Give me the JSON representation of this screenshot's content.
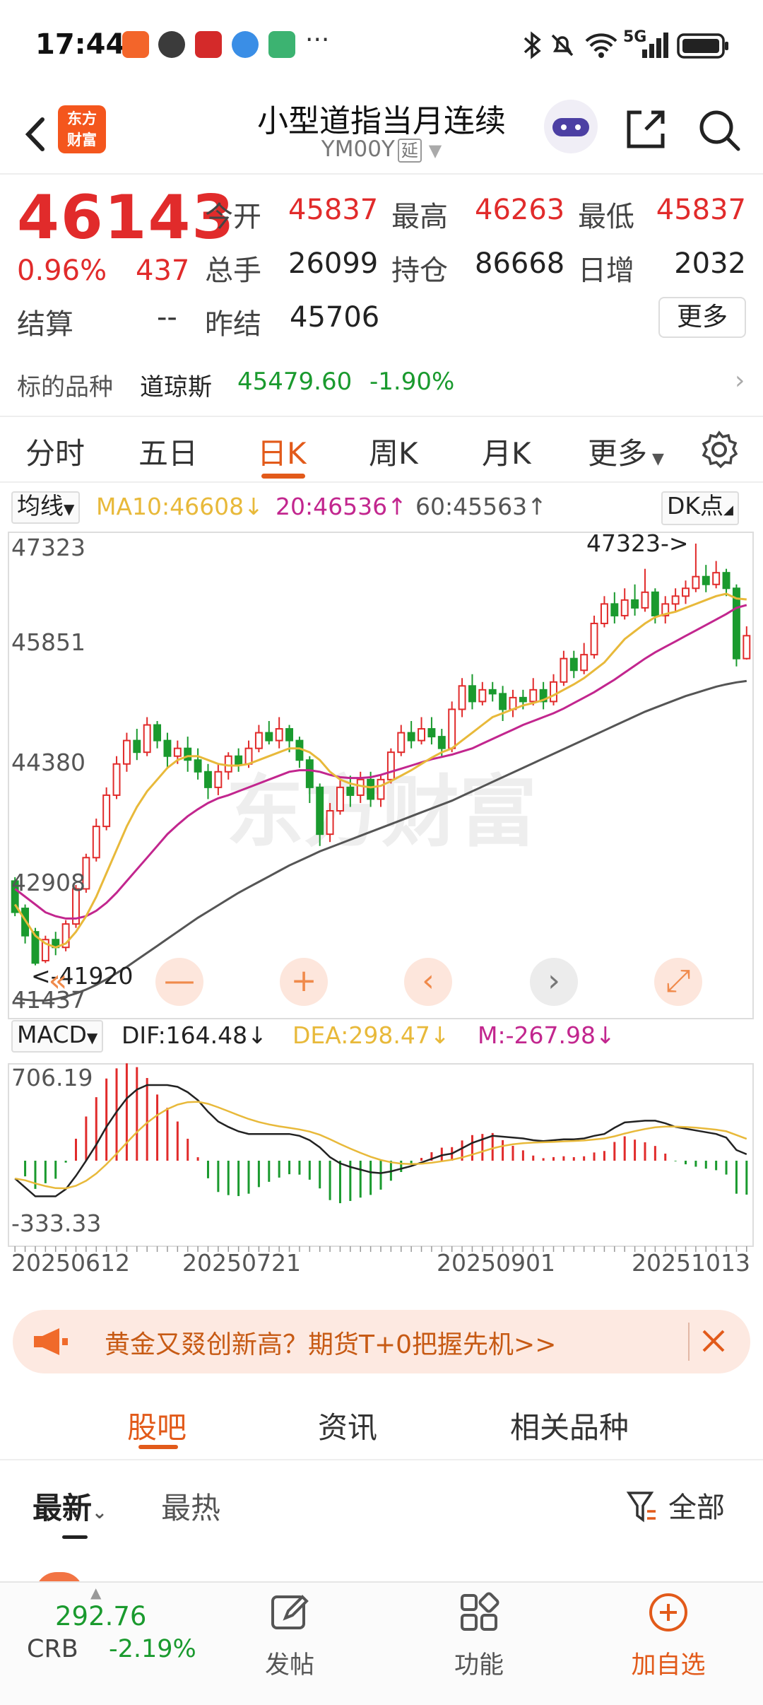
{
  "status_bar": {
    "time": "17:44",
    "network": "5G"
  },
  "header": {
    "logo_text": "东方\n财富",
    "title": "小型道指当月连续",
    "code": "YM00Y",
    "delay_badge": "延"
  },
  "quote": {
    "price": "46143",
    "change_pct": "0.96%",
    "change": "437",
    "rows": [
      [
        {
          "label": "今开",
          "value": "45837",
          "color": "red"
        },
        {
          "label": "最高",
          "value": "46263",
          "color": "red"
        },
        {
          "label": "最低",
          "value": "45837",
          "color": "red"
        }
      ],
      [
        {
          "label": "总手",
          "value": "26099",
          "color": "dark"
        },
        {
          "label": "持仓",
          "value": "86668",
          "color": "dark"
        },
        {
          "label": "日增",
          "value": "2032",
          "color": "dark"
        }
      ]
    ],
    "settle_label": "结算",
    "settle_value": "--",
    "prev_settle_label": "昨结",
    "prev_settle_value": "45706",
    "more_button": "更多"
  },
  "underlying": {
    "label": "标的品种",
    "name": "道琼斯",
    "price": "45479.60",
    "change_pct": "-1.90%"
  },
  "chart_tabs": [
    {
      "label": "分时",
      "active": false
    },
    {
      "label": "五日",
      "active": false
    },
    {
      "label": "日K",
      "active": true
    },
    {
      "label": "周K",
      "active": false
    },
    {
      "label": "月K",
      "active": false
    },
    {
      "label": "更多",
      "active": false
    }
  ],
  "indicators": {
    "ma_select": "均线",
    "ma10": "MA10:46608↓",
    "ma20": "20:46536↑",
    "ma60": "60:45563↑",
    "dk_label": "DK点",
    "macd_select": "MACD",
    "dif": "DIF:164.48↓",
    "dea": "DEA:298.47↓",
    "m": "M:-267.98↓",
    "colors": {
      "ma10": "#e8b93a",
      "ma20": "#c2268e",
      "ma60": "#555555",
      "up": "#e12b2b",
      "down": "#1a9a2e"
    }
  },
  "kline_axis": {
    "y_labels": [
      "47323",
      "45851",
      "44380",
      "42908",
      "41437"
    ],
    "high_marker": "47323->",
    "low_marker": "<-41920"
  },
  "macd_axis": {
    "y_labels": [
      "706.19",
      "-333.33"
    ],
    "dates": [
      "20250612",
      "20250721",
      "20250901",
      "20251013"
    ]
  },
  "chart_controls": [
    "«",
    "—",
    "+",
    "‹",
    "›",
    "⤢"
  ],
  "banner": {
    "text": "黄金又叕创新高？期货T+0把握先机>>"
  },
  "content_tabs": [
    {
      "label": "股吧",
      "active": true
    },
    {
      "label": "资讯",
      "active": false
    },
    {
      "label": "相关品种",
      "active": false
    }
  ],
  "sort": {
    "latest": "最新",
    "hot": "最热",
    "filter": "全部"
  },
  "bottom_bar": {
    "crb_value": "292.76",
    "crb_label": "CRB",
    "crb_change": "-2.19%",
    "post": "发帖",
    "functions": "功能",
    "add": "加自选"
  },
  "chart_data": {
    "type": "candlestick",
    "ylim": [
      41437,
      47323
    ],
    "candles": [
      [
        43000,
        42600,
        43050,
        42550
      ],
      [
        42650,
        42300,
        42700,
        42200
      ],
      [
        42350,
        41950,
        42400,
        41920
      ],
      [
        41980,
        42250,
        42300,
        41950
      ],
      [
        42250,
        42150,
        42350,
        42050
      ],
      [
        42150,
        42450,
        42500,
        42100
      ],
      [
        42450,
        42900,
        42950,
        42400
      ],
      [
        42900,
        43300,
        43350,
        42850
      ],
      [
        43300,
        43700,
        43800,
        43250
      ],
      [
        43700,
        44100,
        44200,
        43650
      ],
      [
        44100,
        44500,
        44600,
        44050
      ],
      [
        44500,
        44800,
        44900,
        44400
      ],
      [
        44800,
        44650,
        44950,
        44550
      ],
      [
        44650,
        45000,
        45100,
        44600
      ],
      [
        45000,
        44800,
        45050,
        44700
      ],
      [
        44800,
        44600,
        44900,
        44450
      ],
      [
        44600,
        44700,
        44800,
        44500
      ],
      [
        44700,
        44550,
        44850,
        44400
      ],
      [
        44550,
        44400,
        44700,
        44300
      ],
      [
        44400,
        44200,
        44500,
        44050
      ],
      [
        44200,
        44400,
        44500,
        44100
      ],
      [
        44400,
        44600,
        44650,
        44300
      ],
      [
        44600,
        44500,
        44700,
        44400
      ],
      [
        44500,
        44700,
        44800,
        44450
      ],
      [
        44700,
        44900,
        45000,
        44650
      ],
      [
        44900,
        44800,
        45050,
        44750
      ],
      [
        44800,
        44950,
        45100,
        44700
      ],
      [
        44950,
        44800,
        45000,
        44650
      ],
      [
        44800,
        44550,
        44850,
        44450
      ],
      [
        44550,
        44200,
        44600,
        44000
      ],
      [
        44200,
        43600,
        44250,
        43450
      ],
      [
        43600,
        43900,
        44000,
        43500
      ],
      [
        43900,
        44200,
        44300,
        43850
      ],
      [
        44200,
        44100,
        44350,
        43950
      ],
      [
        44100,
        44300,
        44400,
        44000
      ],
      [
        44300,
        44050,
        44400,
        43950
      ],
      [
        44050,
        44300,
        44350,
        43950
      ],
      [
        44300,
        44650,
        44700,
        44250
      ],
      [
        44650,
        44900,
        45000,
        44600
      ],
      [
        44900,
        44800,
        45050,
        44700
      ],
      [
        44800,
        44950,
        45100,
        44750
      ],
      [
        44950,
        44850,
        45100,
        44750
      ],
      [
        44850,
        44700,
        44950,
        44600
      ],
      [
        44700,
        45200,
        45300,
        44650
      ],
      [
        45200,
        45500,
        45600,
        45100
      ],
      [
        45500,
        45300,
        45650,
        45200
      ],
      [
        45300,
        45450,
        45550,
        45250
      ],
      [
        45450,
        45400,
        45550,
        45300
      ],
      [
        45400,
        45200,
        45500,
        45050
      ],
      [
        45200,
        45350,
        45450,
        45100
      ],
      [
        45350,
        45300,
        45450,
        45200
      ],
      [
        45300,
        45450,
        45600,
        45250
      ],
      [
        45450,
        45300,
        45550,
        45200
      ],
      [
        45300,
        45550,
        45650,
        45250
      ],
      [
        45550,
        45850,
        45950,
        45500
      ],
      [
        45850,
        45700,
        45950,
        45600
      ],
      [
        45700,
        45900,
        46050,
        45650
      ],
      [
        45900,
        46300,
        46400,
        45850
      ],
      [
        46300,
        46550,
        46650,
        46250
      ],
      [
        46550,
        46400,
        46700,
        46300
      ],
      [
        46400,
        46600,
        46750,
        46350
      ],
      [
        46600,
        46500,
        46800,
        46400
      ],
      [
        46500,
        46700,
        47000,
        46450
      ],
      [
        46700,
        46400,
        46750,
        46300
      ],
      [
        46400,
        46550,
        46650,
        46300
      ],
      [
        46550,
        46650,
        46750,
        46450
      ],
      [
        46650,
        46750,
        46850,
        46550
      ],
      [
        46750,
        46900,
        47323,
        46700
      ],
      [
        46900,
        46800,
        47050,
        46700
      ],
      [
        46800,
        46950,
        47100,
        46750
      ],
      [
        46950,
        46750,
        47000,
        46650
      ],
      [
        46750,
        45850,
        46800,
        45750
      ],
      [
        45850,
        46143,
        46263,
        45837
      ]
    ],
    "ma10": [
      42700,
      42500,
      42300,
      42200,
      42150,
      42200,
      42350,
      42550,
      42800,
      43100,
      43400,
      43700,
      43950,
      44150,
      44300,
      44450,
      44550,
      44600,
      44600,
      44550,
      44500,
      44480,
      44480,
      44500,
      44550,
      44600,
      44650,
      44700,
      44700,
      44650,
      44550,
      44400,
      44300,
      44250,
      44220,
      44200,
      44220,
      44280,
      44350,
      44420,
      44500,
      44580,
      44650,
      44700,
      44800,
      44900,
      45000,
      45100,
      45150,
      45200,
      45250,
      45280,
      45320,
      45380,
      45450,
      45520,
      45600,
      45700,
      45800,
      45950,
      46100,
      46200,
      46300,
      46380,
      46420,
      46450,
      46500,
      46550,
      46600,
      46650,
      46680,
      46620,
      46608
    ],
    "ma20": [
      42900,
      42800,
      42700,
      42600,
      42550,
      42520,
      42520,
      42550,
      42620,
      42720,
      42850,
      43000,
      43150,
      43300,
      43450,
      43600,
      43720,
      43830,
      43920,
      44000,
      44060,
      44100,
      44150,
      44200,
      44250,
      44300,
      44350,
      44400,
      44420,
      44420,
      44400,
      44360,
      44330,
      44320,
      44320,
      44330,
      44360,
      44400,
      44440,
      44480,
      44520,
      44560,
      44590,
      44620,
      44660,
      44700,
      44760,
      44820,
      44880,
      44940,
      45000,
      45050,
      45100,
      45150,
      45210,
      45280,
      45350,
      45420,
      45500,
      45580,
      45670,
      45760,
      45850,
      45930,
      46000,
      46070,
      46140,
      46210,
      46280,
      46350,
      46420,
      46500,
      46536
    ],
    "ma60": [
      41500,
      41480,
      41470,
      41470,
      41490,
      41520,
      41560,
      41610,
      41670,
      41740,
      41820,
      41900,
      41990,
      42080,
      42170,
      42260,
      42350,
      42440,
      42530,
      42610,
      42690,
      42770,
      42850,
      42920,
      42990,
      43060,
      43130,
      43200,
      43260,
      43320,
      43380,
      43430,
      43480,
      43530,
      43580,
      43630,
      43680,
      43730,
      43780,
      43830,
      43880,
      43930,
      43980,
      44030,
      44090,
      44150,
      44210,
      44270,
      44330,
      44390,
      44450,
      44510,
      44570,
      44630,
      44690,
      44750,
      44810,
      44870,
      44930,
      44990,
      45050,
      45110,
      45170,
      45220,
      45270,
      45320,
      45370,
      45410,
      45450,
      45490,
      45520,
      45545,
      45563
    ]
  }
}
